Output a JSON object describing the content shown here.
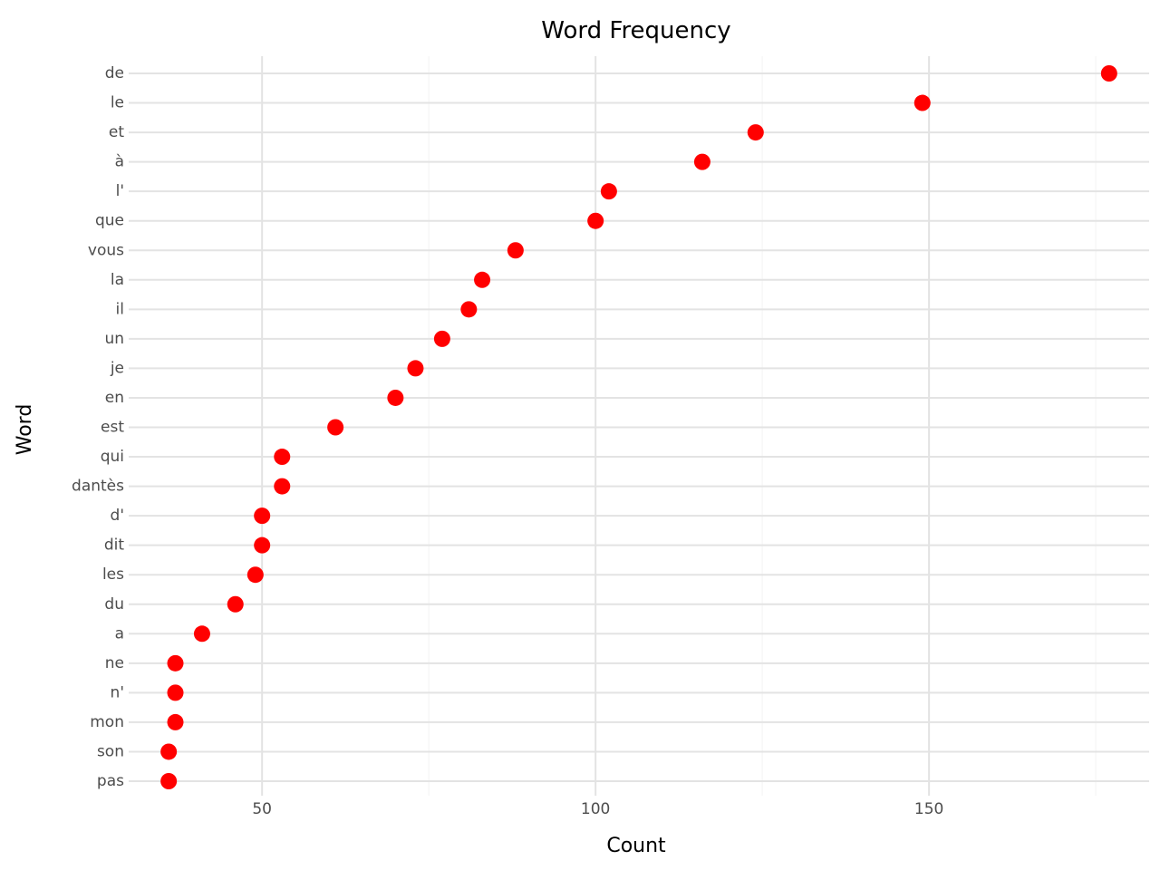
{
  "chart_data": {
    "type": "scatter",
    "title": "Word Frequency",
    "xlabel": "Count",
    "ylabel": "Word",
    "xlim": [
      30,
      183
    ],
    "x_ticks": [
      50,
      100,
      150
    ],
    "x_tick_labels": [
      "50",
      "100",
      "150"
    ],
    "x_minor_ticks": [
      75,
      125,
      175
    ],
    "grid": true,
    "categories": [
      "de",
      "le",
      "et",
      "à",
      "l'",
      "que",
      "vous",
      "la",
      "il",
      "un",
      "je",
      "en",
      "est",
      "qui",
      "dantès",
      "d'",
      "dit",
      "les",
      "du",
      "a",
      "ne",
      "n'",
      "mon",
      "son",
      "pas"
    ],
    "values": [
      177,
      149,
      124,
      116,
      102,
      100,
      88,
      83,
      81,
      77,
      73,
      70,
      61,
      53,
      53,
      50,
      50,
      49,
      46,
      41,
      37,
      37,
      37,
      36,
      36
    ],
    "point_color": "#ff0000"
  }
}
